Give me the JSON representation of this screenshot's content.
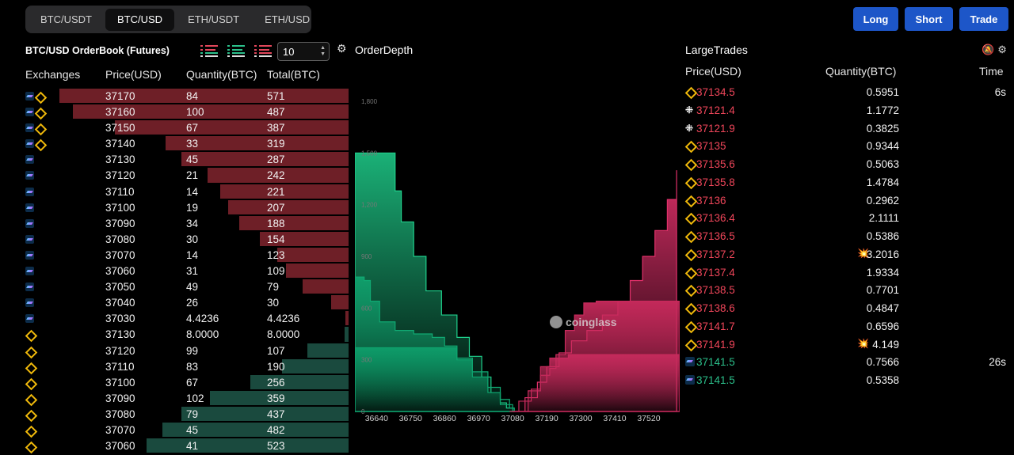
{
  "pair_tabs": [
    {
      "label": "BTC/USDT",
      "active": false
    },
    {
      "label": "BTC/USD",
      "active": true
    },
    {
      "label": "ETH/USDT",
      "active": false
    },
    {
      "label": "ETH/USD",
      "active": false
    }
  ],
  "actions": {
    "long": "Long",
    "short": "Short",
    "trade": "Trade"
  },
  "orderbook": {
    "title": "BTC/USD OrderBook (Futures)",
    "depth_value": "10",
    "columns": {
      "exchanges": "Exchanges",
      "price": "Price(USD)",
      "quantity": "Quantity(BTC)",
      "total": "Total(BTC)"
    },
    "asks": [
      {
        "price": "37170",
        "qty": "84",
        "total": "571",
        "fill": 0.83,
        "exchanges": [
          "ftx",
          "bnb",
          "bnbtxt"
        ]
      },
      {
        "price": "37160",
        "qty": "100",
        "total": "487",
        "fill": 0.79,
        "exchanges": [
          "ftx",
          "bnb",
          "bnbtxt"
        ]
      },
      {
        "price": "37150",
        "qty": "67",
        "total": "387",
        "fill": 0.67,
        "exchanges": [
          "ftx",
          "bnb",
          "bnbtxt"
        ]
      },
      {
        "price": "37140",
        "qty": "33",
        "total": "319",
        "fill": 0.525,
        "exchanges": [
          "ftx",
          "bnb",
          "bnbtxt"
        ]
      },
      {
        "price": "37130",
        "qty": "45",
        "total": "287",
        "fill": 0.48,
        "exchanges": [
          "ftx"
        ]
      },
      {
        "price": "37120",
        "qty": "21",
        "total": "242",
        "fill": 0.405,
        "exchanges": [
          "ftx"
        ]
      },
      {
        "price": "37110",
        "qty": "14",
        "total": "221",
        "fill": 0.368,
        "exchanges": [
          "ftx"
        ]
      },
      {
        "price": "37100",
        "qty": "19",
        "total": "207",
        "fill": 0.345,
        "exchanges": [
          "ftx"
        ]
      },
      {
        "price": "37090",
        "qty": "34",
        "total": "188",
        "fill": 0.314,
        "exchanges": [
          "ftx"
        ]
      },
      {
        "price": "37080",
        "qty": "30",
        "total": "154",
        "fill": 0.255,
        "exchanges": [
          "ftx"
        ]
      },
      {
        "price": "37070",
        "qty": "14",
        "total": "123",
        "fill": 0.205,
        "exchanges": [
          "ftx"
        ]
      },
      {
        "price": "37060",
        "qty": "31",
        "total": "109",
        "fill": 0.18,
        "exchanges": [
          "ftx"
        ]
      },
      {
        "price": "37050",
        "qty": "49",
        "total": "79",
        "fill": 0.132,
        "exchanges": [
          "ftx"
        ]
      },
      {
        "price": "37040",
        "qty": "26",
        "total": "30",
        "fill": 0.05,
        "exchanges": [
          "ftx"
        ]
      },
      {
        "price": "37030",
        "qty": "4.4236",
        "total": "4.4236",
        "fill": 0.008,
        "exchanges": [
          "ftx"
        ]
      }
    ],
    "bids": [
      {
        "price": "37130",
        "qty": "8.0000",
        "total": "8.0000",
        "fill": 0.012,
        "exchanges": [
          "bnb",
          "bnbtxt"
        ]
      },
      {
        "price": "37120",
        "qty": "99",
        "total": "107",
        "fill": 0.118,
        "exchanges": [
          "bnb",
          "bnbtxt"
        ]
      },
      {
        "price": "37110",
        "qty": "83",
        "total": "190",
        "fill": 0.19,
        "exchanges": [
          "bnb",
          "bnbtxt"
        ]
      },
      {
        "price": "37100",
        "qty": "67",
        "total": "256",
        "fill": 0.282,
        "exchanges": [
          "bnb",
          "bnbtxt"
        ]
      },
      {
        "price": "37090",
        "qty": "102",
        "total": "359",
        "fill": 0.397,
        "exchanges": [
          "bnb",
          "bnbtxt"
        ]
      },
      {
        "price": "37080",
        "qty": "79",
        "total": "437",
        "fill": 0.48,
        "exchanges": [
          "bnb",
          "bnbtxt"
        ]
      },
      {
        "price": "37070",
        "qty": "45",
        "total": "482",
        "fill": 0.535,
        "exchanges": [
          "bnb",
          "bnbtxt"
        ]
      },
      {
        "price": "37060",
        "qty": "41",
        "total": "523",
        "fill": 0.58,
        "exchanges": [
          "bnb",
          "bnbtxt"
        ]
      }
    ]
  },
  "depth": {
    "title": "OrderDepth",
    "watermark": "coinglass"
  },
  "chart_data": {
    "type": "area",
    "title": "OrderDepth",
    "xlabel": "",
    "ylabel": "",
    "x_ticks": [
      "36640",
      "36750",
      "36860",
      "36970",
      "37080",
      "37190",
      "37300",
      "37410",
      "37520"
    ],
    "y_ticks": [
      "0",
      "300",
      "600",
      "900",
      "1,200",
      "1,500",
      "1,800"
    ],
    "ylim": [
      0,
      1800
    ],
    "xlim": [
      36570,
      37620
    ],
    "series": [
      {
        "side": "bid",
        "color": "#1fd08c",
        "points": [
          [
            36570,
            1500
          ],
          [
            36680,
            1500
          ],
          [
            36700,
            1280
          ],
          [
            36720,
            1100
          ],
          [
            36760,
            900
          ],
          [
            36800,
            700
          ],
          [
            36850,
            560
          ],
          [
            36900,
            430
          ],
          [
            36940,
            320
          ],
          [
            36980,
            200
          ],
          [
            37010,
            110
          ],
          [
            37040,
            50
          ],
          [
            37060,
            20
          ],
          [
            37085,
            0
          ]
        ]
      },
      {
        "side": "bid",
        "color": "#10a872",
        "points": [
          [
            36570,
            780
          ],
          [
            36600,
            760
          ],
          [
            36620,
            640
          ],
          [
            36650,
            520
          ],
          [
            36700,
            470
          ],
          [
            36760,
            450
          ],
          [
            36820,
            430
          ],
          [
            36860,
            380
          ],
          [
            36900,
            310
          ],
          [
            36950,
            230
          ],
          [
            37000,
            140
          ],
          [
            37040,
            70
          ],
          [
            37070,
            20
          ],
          [
            37085,
            0
          ]
        ]
      },
      {
        "side": "bid",
        "color": "#0ea56f",
        "points": [
          [
            36570,
            370
          ],
          [
            36850,
            370
          ],
          [
            36900,
            300
          ],
          [
            36950,
            200
          ],
          [
            37000,
            110
          ],
          [
            37040,
            40
          ],
          [
            37080,
            0
          ]
        ]
      },
      {
        "side": "ask",
        "color": "#e0306a",
        "points": [
          [
            37080,
            0
          ],
          [
            37120,
            80
          ],
          [
            37160,
            170
          ],
          [
            37190,
            260
          ],
          [
            37230,
            340
          ],
          [
            37270,
            410
          ],
          [
            37320,
            470
          ],
          [
            37370,
            560
          ],
          [
            37420,
            640
          ],
          [
            37460,
            760
          ],
          [
            37500,
            900
          ],
          [
            37540,
            1050
          ],
          [
            37580,
            1230
          ],
          [
            37610,
            1400
          ]
        ]
      },
      {
        "side": "ask",
        "color": "#c82a5c",
        "points": [
          [
            37070,
            0
          ],
          [
            37100,
            60
          ],
          [
            37140,
            130
          ],
          [
            37170,
            210
          ],
          [
            37200,
            250
          ],
          [
            37220,
            330
          ],
          [
            37250,
            470
          ],
          [
            37280,
            560
          ],
          [
            37310,
            630
          ],
          [
            37350,
            640
          ],
          [
            37620,
            640
          ]
        ]
      },
      {
        "side": "ask",
        "color": "#c72b5d",
        "points": [
          [
            37080,
            0
          ],
          [
            37130,
            120
          ],
          [
            37170,
            260
          ],
          [
            37200,
            310
          ],
          [
            37260,
            330
          ],
          [
            37620,
            330
          ]
        ]
      }
    ]
  },
  "large_trades": {
    "title": "LargeTrades",
    "columns": {
      "price": "Price(USD)",
      "quantity": "Quantity(BTC)",
      "time": "Time"
    },
    "rows": [
      {
        "ex": "bnb",
        "price": "37134.5",
        "side": "sell",
        "qty": "0.5951",
        "burst": false,
        "time": "6s"
      },
      {
        "ex": "okx",
        "price": "37121.4",
        "side": "sell",
        "qty": "1.1772",
        "burst": false,
        "time": ""
      },
      {
        "ex": "okx",
        "price": "37121.9",
        "side": "sell",
        "qty": "0.3825",
        "burst": false,
        "time": ""
      },
      {
        "ex": "bnb",
        "price": "37135",
        "side": "sell",
        "qty": "0.9344",
        "burst": false,
        "time": ""
      },
      {
        "ex": "bnb",
        "price": "37135.6",
        "side": "sell",
        "qty": "0.5063",
        "burst": false,
        "time": ""
      },
      {
        "ex": "bnb",
        "price": "37135.8",
        "side": "sell",
        "qty": "1.4784",
        "burst": false,
        "time": ""
      },
      {
        "ex": "bnb",
        "price": "37136",
        "side": "sell",
        "qty": "0.2962",
        "burst": false,
        "time": ""
      },
      {
        "ex": "bnb",
        "price": "37136.4",
        "side": "sell",
        "qty": "2.1111",
        "burst": false,
        "time": ""
      },
      {
        "ex": "bnb",
        "price": "37136.5",
        "side": "sell",
        "qty": "0.5386",
        "burst": false,
        "time": ""
      },
      {
        "ex": "bnb",
        "price": "37137.2",
        "side": "sell",
        "qty": "3.2016",
        "burst": true,
        "time": ""
      },
      {
        "ex": "bnb",
        "price": "37137.4",
        "side": "sell",
        "qty": "1.9334",
        "burst": false,
        "time": ""
      },
      {
        "ex": "bnb",
        "price": "37138.5",
        "side": "sell",
        "qty": "0.7701",
        "burst": false,
        "time": ""
      },
      {
        "ex": "bnb",
        "price": "37138.6",
        "side": "sell",
        "qty": "0.4847",
        "burst": false,
        "time": ""
      },
      {
        "ex": "bnb",
        "price": "37141.7",
        "side": "sell",
        "qty": "0.6596",
        "burst": false,
        "time": ""
      },
      {
        "ex": "bnb",
        "price": "37141.9",
        "side": "sell",
        "qty": "4.149",
        "burst": true,
        "time": ""
      },
      {
        "ex": "ftx",
        "price": "37141.5",
        "side": "buy",
        "qty": "0.7566",
        "burst": false,
        "time": "26s"
      },
      {
        "ex": "ftx",
        "price": "37141.5",
        "side": "buy",
        "qty": "0.5358",
        "burst": false,
        "time": ""
      }
    ]
  }
}
